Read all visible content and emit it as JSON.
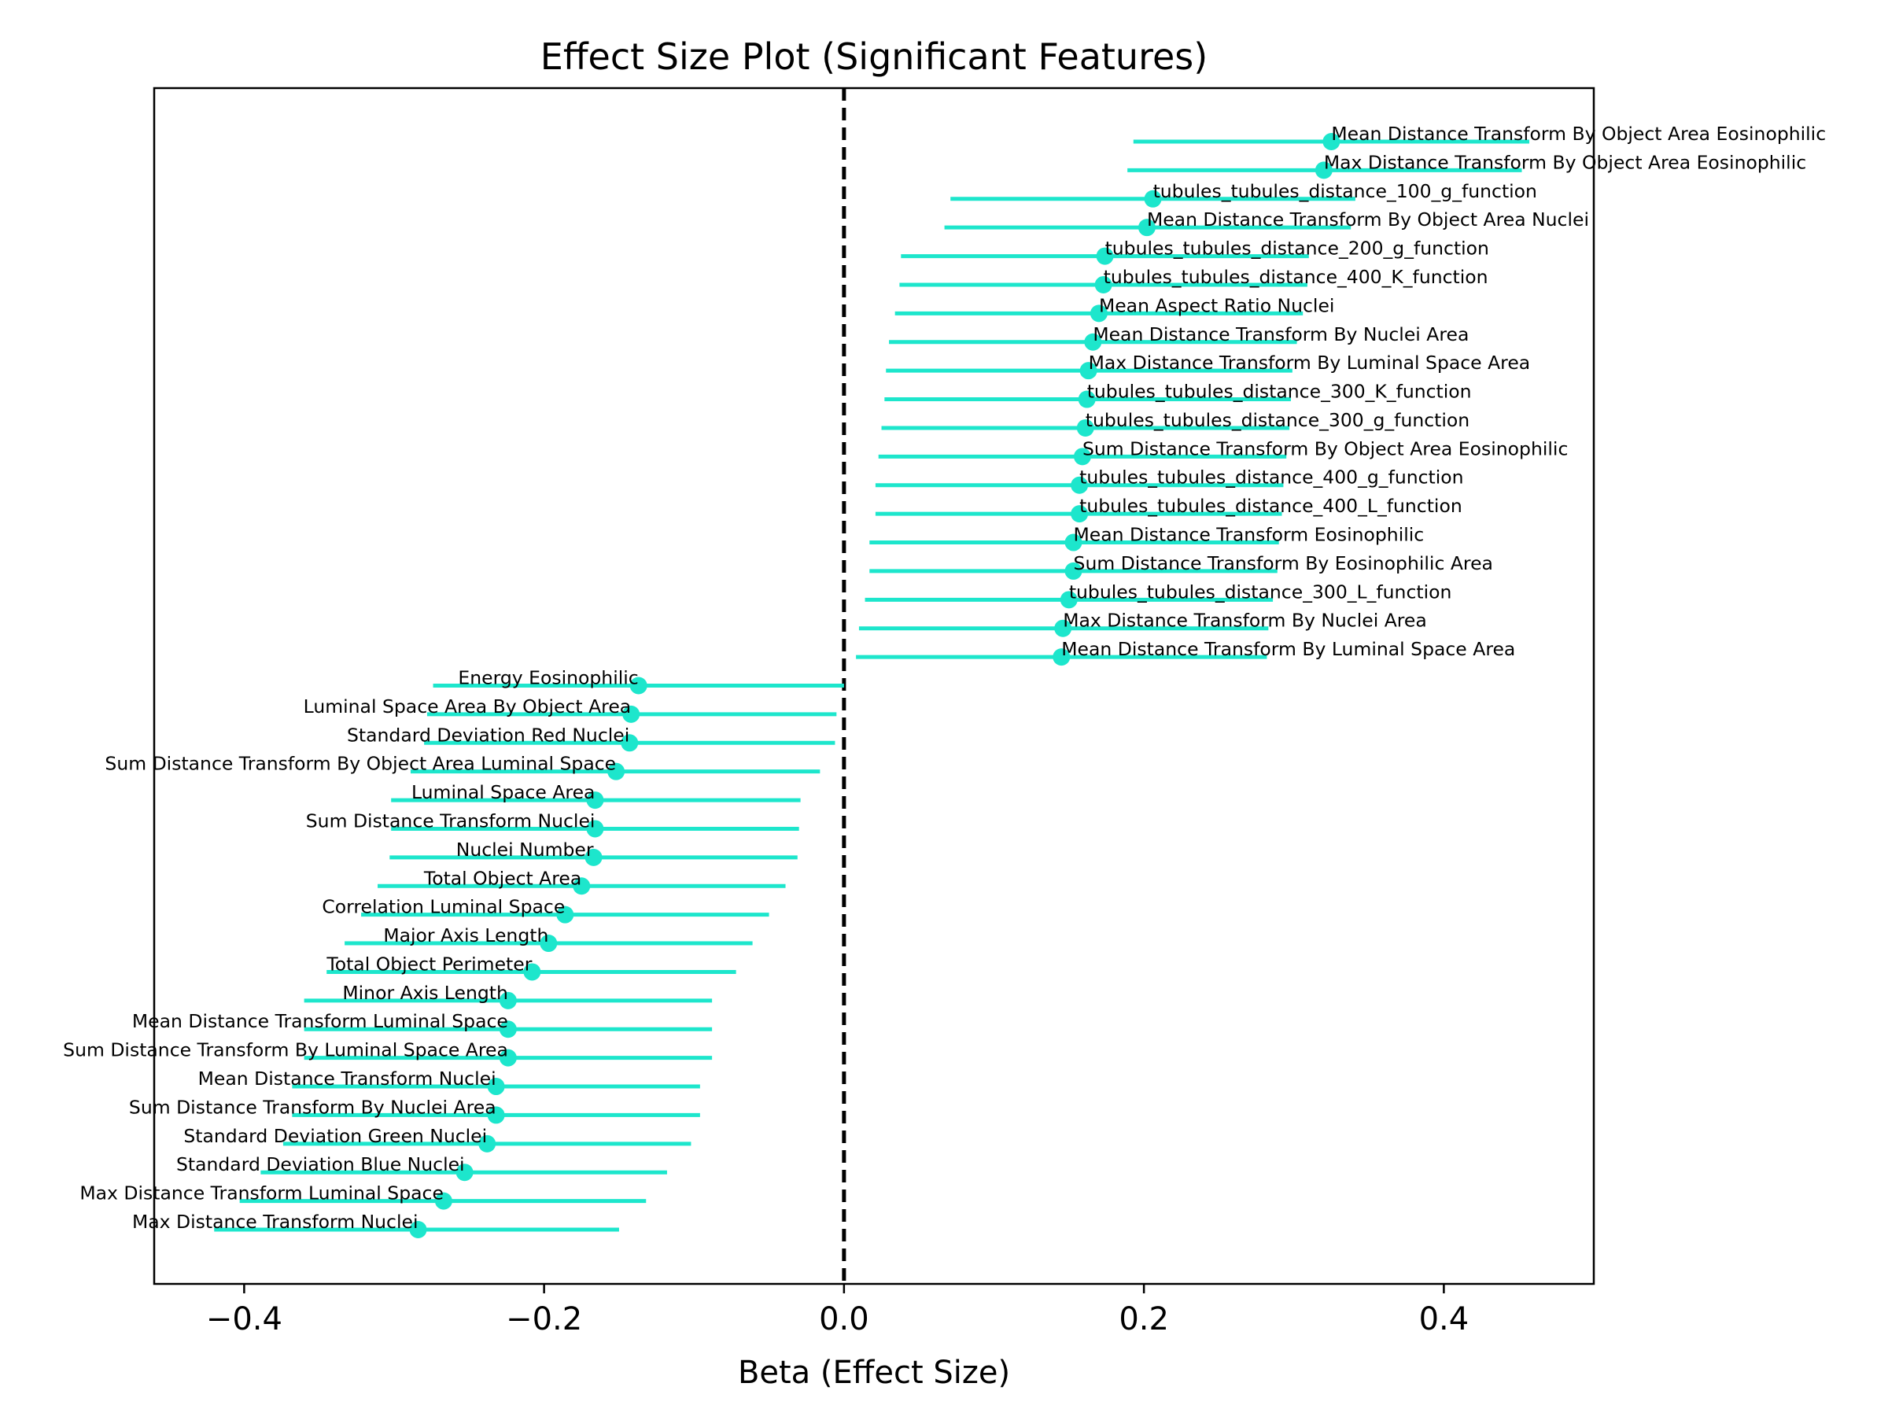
{
  "chart_data": {
    "type": "scatter",
    "subtype": "forest-plot",
    "title": "Effect Size Plot (Significant Features)",
    "xlabel": "Beta (Effect Size)",
    "ylabel": "",
    "xlim": [
      -0.46,
      0.5
    ],
    "x_ticks": [
      -0.4,
      -0.2,
      0.0,
      0.2,
      0.4
    ],
    "x_tick_labels": [
      "−0.4",
      "−0.2",
      "0.0",
      "0.2",
      "0.4"
    ],
    "reference_line": {
      "x": 0.0,
      "style": "dashed",
      "color": "#000000"
    },
    "marker_color": "#1de6cc",
    "grid": false,
    "legend": "none",
    "points": [
      {
        "label": "Mean Distance Transform By Object Area Eosinophilic",
        "beta": 0.325,
        "ci_low": 0.193,
        "ci_high": 0.457
      },
      {
        "label": "Max Distance Transform By Object Area Eosinophilic",
        "beta": 0.32,
        "ci_low": 0.189,
        "ci_high": 0.452
      },
      {
        "label": "tubules_tubules_distance_100_g_function",
        "beta": 0.206,
        "ci_low": 0.071,
        "ci_high": 0.341
      },
      {
        "label": "Mean Distance Transform By Object Area Nuclei",
        "beta": 0.202,
        "ci_low": 0.067,
        "ci_high": 0.338
      },
      {
        "label": "tubules_tubules_distance_200_g_function",
        "beta": 0.174,
        "ci_low": 0.038,
        "ci_high": 0.31
      },
      {
        "label": "tubules_tubules_distance_400_K_function",
        "beta": 0.173,
        "ci_low": 0.037,
        "ci_high": 0.309
      },
      {
        "label": "Mean Aspect Ratio Nuclei",
        "beta": 0.17,
        "ci_low": 0.034,
        "ci_high": 0.306
      },
      {
        "label": "Mean Distance Transform By Nuclei Area",
        "beta": 0.166,
        "ci_low": 0.03,
        "ci_high": 0.302
      },
      {
        "label": "Max Distance Transform By Luminal Space Area",
        "beta": 0.163,
        "ci_low": 0.028,
        "ci_high": 0.299
      },
      {
        "label": "tubules_tubules_distance_300_K_function",
        "beta": 0.162,
        "ci_low": 0.027,
        "ci_high": 0.298
      },
      {
        "label": "tubules_tubules_distance_300_g_function",
        "beta": 0.161,
        "ci_low": 0.025,
        "ci_high": 0.297
      },
      {
        "label": "Sum Distance Transform By Object Area Eosinophilic",
        "beta": 0.159,
        "ci_low": 0.023,
        "ci_high": 0.295
      },
      {
        "label": "tubules_tubules_distance_400_g_function",
        "beta": 0.157,
        "ci_low": 0.021,
        "ci_high": 0.293
      },
      {
        "label": "tubules_tubules_distance_400_L_function",
        "beta": 0.157,
        "ci_low": 0.021,
        "ci_high": 0.292
      },
      {
        "label": "Mean Distance Transform Eosinophilic",
        "beta": 0.153,
        "ci_low": 0.017,
        "ci_high": 0.29
      },
      {
        "label": "Sum Distance Transform By Eosinophilic Area",
        "beta": 0.153,
        "ci_low": 0.017,
        "ci_high": 0.289
      },
      {
        "label": "tubules_tubules_distance_300_L_function",
        "beta": 0.15,
        "ci_low": 0.014,
        "ci_high": 0.286
      },
      {
        "label": "Max Distance Transform By Nuclei Area",
        "beta": 0.146,
        "ci_low": 0.01,
        "ci_high": 0.283
      },
      {
        "label": "Mean Distance Transform By Luminal Space Area",
        "beta": 0.145,
        "ci_low": 0.008,
        "ci_high": 0.282
      },
      {
        "label": "Energy Eosinophilic",
        "beta": -0.137,
        "ci_low": -0.274,
        "ci_high": 0.0
      },
      {
        "label": "Luminal Space Area By Object Area",
        "beta": -0.142,
        "ci_low": -0.278,
        "ci_high": -0.005
      },
      {
        "label": "Standard Deviation Red Nuclei",
        "beta": -0.143,
        "ci_low": -0.28,
        "ci_high": -0.006
      },
      {
        "label": "Sum Distance Transform By Object Area Luminal Space",
        "beta": -0.152,
        "ci_low": -0.289,
        "ci_high": -0.016
      },
      {
        "label": "Luminal Space Area",
        "beta": -0.166,
        "ci_low": -0.302,
        "ci_high": -0.029
      },
      {
        "label": "Sum Distance Transform Nuclei",
        "beta": -0.166,
        "ci_low": -0.302,
        "ci_high": -0.03
      },
      {
        "label": "Nuclei Number",
        "beta": -0.167,
        "ci_low": -0.303,
        "ci_high": -0.031
      },
      {
        "label": "Total Object Area",
        "beta": -0.175,
        "ci_low": -0.311,
        "ci_high": -0.039
      },
      {
        "label": "Correlation Luminal Space",
        "beta": -0.186,
        "ci_low": -0.322,
        "ci_high": -0.05
      },
      {
        "label": "Major Axis Length",
        "beta": -0.197,
        "ci_low": -0.333,
        "ci_high": -0.061
      },
      {
        "label": "Total Object Perimeter",
        "beta": -0.208,
        "ci_low": -0.345,
        "ci_high": -0.072
      },
      {
        "label": "Minor Axis Length",
        "beta": -0.224,
        "ci_low": -0.36,
        "ci_high": -0.088
      },
      {
        "label": "Mean Distance Transform Luminal Space",
        "beta": -0.224,
        "ci_low": -0.36,
        "ci_high": -0.088
      },
      {
        "label": "Sum Distance Transform By Luminal Space Area",
        "beta": -0.224,
        "ci_low": -0.36,
        "ci_high": -0.088
      },
      {
        "label": "Mean Distance Transform Nuclei",
        "beta": -0.232,
        "ci_low": -0.368,
        "ci_high": -0.096
      },
      {
        "label": "Sum Distance Transform By Nuclei Area",
        "beta": -0.232,
        "ci_low": -0.368,
        "ci_high": -0.096
      },
      {
        "label": "Standard Deviation Green Nuclei",
        "beta": -0.238,
        "ci_low": -0.374,
        "ci_high": -0.102
      },
      {
        "label": "Standard Deviation Blue Nuclei",
        "beta": -0.253,
        "ci_low": -0.389,
        "ci_high": -0.118
      },
      {
        "label": "Max Distance Transform Luminal Space",
        "beta": -0.267,
        "ci_low": -0.403,
        "ci_high": -0.132
      },
      {
        "label": "Max Distance Transform Nuclei",
        "beta": -0.284,
        "ci_low": -0.42,
        "ci_high": -0.15
      }
    ]
  }
}
